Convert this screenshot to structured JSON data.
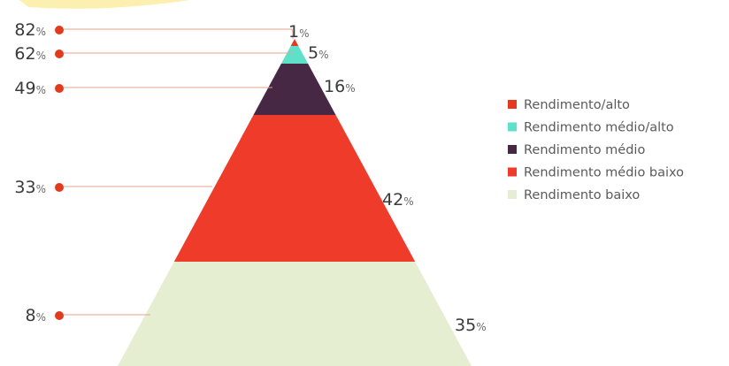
{
  "chart_data": {
    "type": "pyramid",
    "levels": [
      {
        "name": "Rendimento/alto",
        "left_value": 82,
        "right_value": 1,
        "color": "#e63a1f"
      },
      {
        "name": "Rendimento médio/alto",
        "left_value": 62,
        "right_value": 5,
        "color": "#5fe0c8"
      },
      {
        "name": "Rendimento médio",
        "left_value": 49,
        "right_value": 16,
        "color": "#462845"
      },
      {
        "name": "Rendimento médio baixo",
        "left_value": 33,
        "right_value": 42,
        "color": "#ef3b2a"
      },
      {
        "name": "Rendimento baixo",
        "left_value": 8,
        "right_value": 35,
        "color": "#e6eed2"
      }
    ],
    "unit_symbol": "%",
    "legend_position": "right"
  },
  "colors": {
    "marker": "#e23a1e",
    "connector": "#e6a48c",
    "top_banner": "#fbf0b0"
  }
}
